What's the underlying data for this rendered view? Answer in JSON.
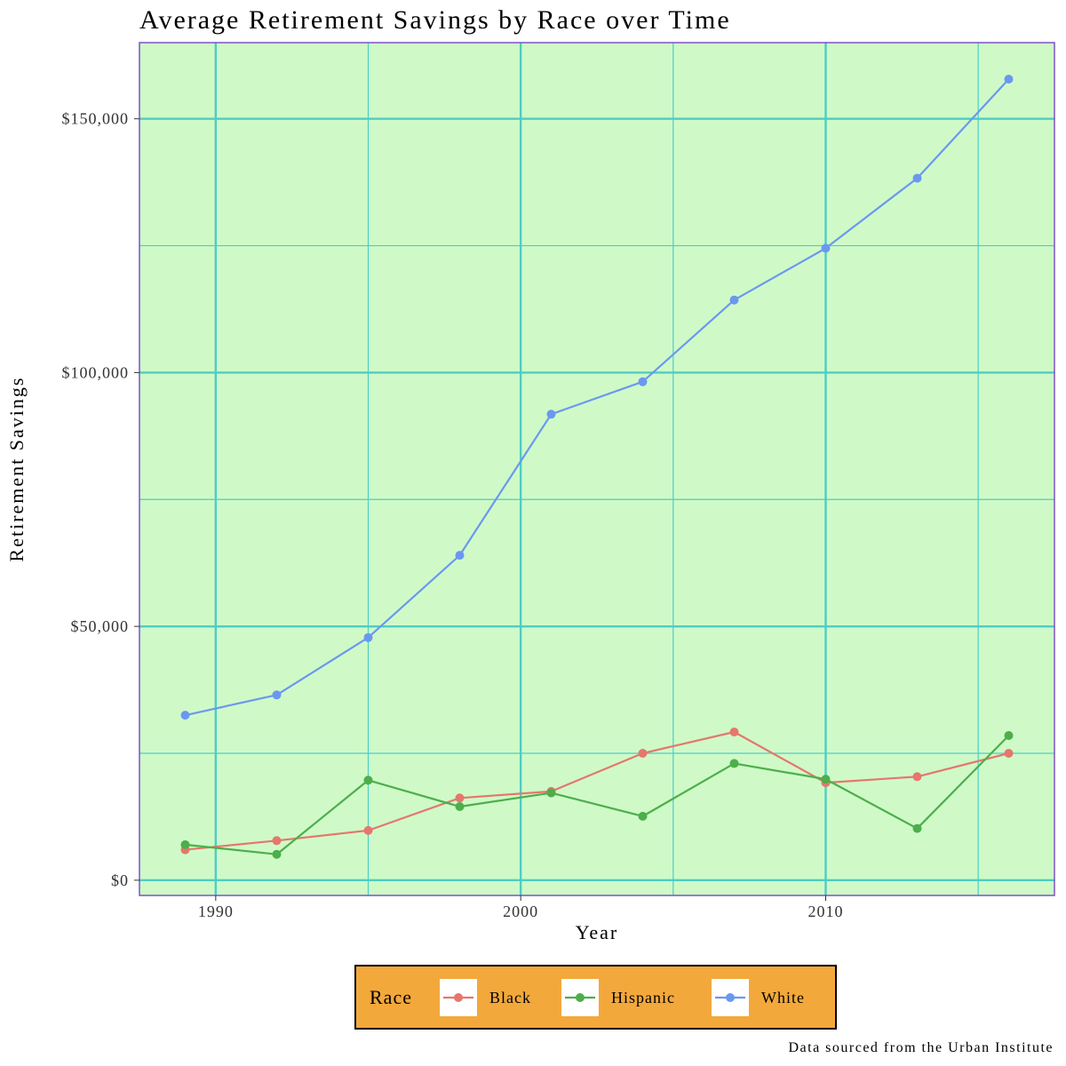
{
  "chart_data": {
    "type": "line",
    "title": "Average Retirement Savings by Race over Time",
    "xlabel": "Year",
    "ylabel": "Retirement Savings",
    "caption": "Data sourced from the Urban Institute",
    "xlim": [
      1987.5,
      2017.5
    ],
    "ylim": [
      -3000,
      165000
    ],
    "x_ticks": [
      1990,
      2000,
      2010
    ],
    "x_tick_labels": [
      "1990",
      "2000",
      "2010"
    ],
    "y_ticks": [
      0,
      50000,
      100000,
      150000
    ],
    "y_tick_labels": [
      "$0",
      "$50,000",
      "$100,000",
      "$150,000"
    ],
    "grid": true,
    "legend": {
      "title": "Race",
      "position": "bottom"
    },
    "x": [
      1989,
      1992,
      1995,
      1998,
      2001,
      2004,
      2007,
      2010,
      2013,
      2016
    ],
    "series": [
      {
        "name": "Black",
        "color": "#e5776d",
        "values": [
          6000,
          7800,
          9800,
          16200,
          17500,
          25000,
          29200,
          19200,
          20400,
          25000
        ]
      },
      {
        "name": "Hispanic",
        "color": "#4dae4b",
        "values": [
          7000,
          5100,
          19700,
          14500,
          17200,
          12600,
          23000,
          19900,
          10200,
          28500
        ]
      },
      {
        "name": "White",
        "color": "#6b98ef",
        "values": [
          32500,
          36500,
          47800,
          64000,
          91800,
          98200,
          114300,
          124500,
          138300,
          157800
        ]
      }
    ],
    "colors": {
      "panel_background": "#cffac8",
      "panel_border": "#7b52c7",
      "grid": "#4ecdc4",
      "legend_background": "#f3a83b",
      "legend_border": "#000000"
    }
  }
}
